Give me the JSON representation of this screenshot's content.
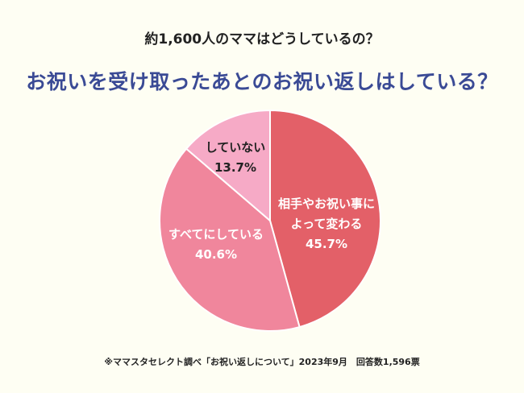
{
  "header": {
    "subtitle": "約1,600人のママはどうしているの？",
    "title": "お祝いを受け取ったあとのお祝い返しはしている？"
  },
  "footnote": "※ママスタセレクト調べ「お祝い返しについて」2023年9月　回答数1,596票",
  "chart_data": {
    "type": "pie",
    "start": "top, clockwise",
    "slices": [
      {
        "label": [
          "相手やお祝い事に",
          "よって変わる"
        ],
        "value": 45.7,
        "display": "45.7%",
        "color": "#e36068",
        "text_color": "#ffffff"
      },
      {
        "label": [
          "すべてにしている"
        ],
        "value": 40.6,
        "display": "40.6%",
        "color": "#f0869c",
        "text_color": "#ffffff"
      },
      {
        "label": [
          "していない"
        ],
        "value": 13.7,
        "display": "13.7%",
        "color": "#f6aac6",
        "text_color": "#222222"
      }
    ]
  }
}
